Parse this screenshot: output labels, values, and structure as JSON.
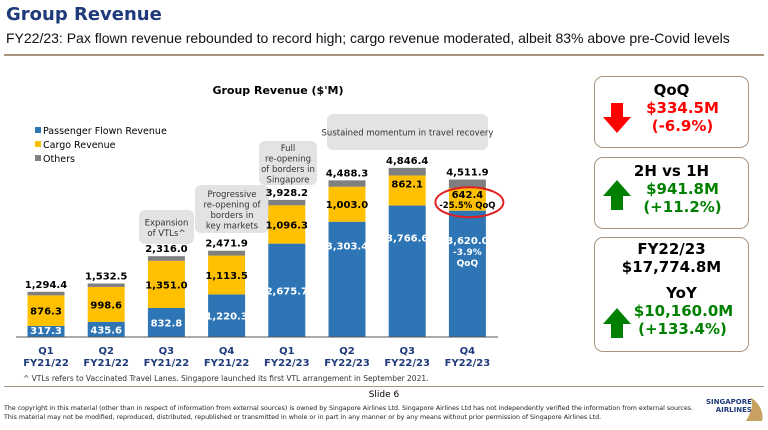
{
  "header": {
    "title": "Group Revenue",
    "subtitle": "FY22/23: Pax flown revenue rebounded to record high; cargo revenue moderated, albeit 83% above pre-Covid levels"
  },
  "chart_data": {
    "type": "bar",
    "stacked": true,
    "title": "Group Revenue ($'M)",
    "categories": [
      [
        "Q1",
        "FY21/22"
      ],
      [
        "Q2",
        "FY21/22"
      ],
      [
        "Q3",
        "FY21/22"
      ],
      [
        "Q4",
        "FY21/22"
      ],
      [
        "Q1",
        "FY22/23"
      ],
      [
        "Q2",
        "FY22/23"
      ],
      [
        "Q3",
        "FY22/23"
      ],
      [
        "Q4",
        "FY22/23"
      ]
    ],
    "series": [
      {
        "name": "Passenger Flown Revenue",
        "color": "#2e75b6",
        "values": [
          317.3,
          435.6,
          832.8,
          1220.3,
          2675.7,
          3303.4,
          3766.6,
          3620.0
        ],
        "labels": [
          "317.3",
          "435.6",
          "832.8",
          "1,220.3",
          "2,675.7",
          "3,303.4",
          "3,766.6",
          "3,620.0"
        ]
      },
      {
        "name": "Cargo Revenue",
        "color": "#ffc000",
        "values": [
          876.3,
          998.6,
          1351.0,
          1113.5,
          1096.3,
          1003.0,
          862.1,
          642.4
        ],
        "labels": [
          "876.3",
          "998.6",
          "1,351.0",
          "1,113.5",
          "1,096.3",
          "1,003.0",
          "862.1",
          "642.4"
        ]
      },
      {
        "name": "Others",
        "color": "#7f7f7f",
        "values": [
          100.8,
          98.3,
          132.2,
          138.1,
          156.2,
          181.9,
          217.7,
          249.5
        ]
      }
    ],
    "totals": [
      "1,294.4",
      "1,532.5",
      "2,316.0",
      "2,471.9",
      "3,928.2",
      "4,488.3",
      "4,846.4",
      "4,511.9"
    ],
    "totals_values": [
      1294.4,
      1532.5,
      2316.0,
      2471.9,
      3928.2,
      4488.3,
      4846.4,
      4511.9
    ],
    "q4_pax_note": [
      "-3.9%",
      "QoQ"
    ],
    "q4_cargo_note": "-25.5% QoQ",
    "callouts": [
      {
        "bar": 2,
        "lines": [
          "Expansion",
          "of VTLs^"
        ]
      },
      {
        "bar": 3,
        "lines": [
          "Progressive",
          "re-opening of",
          "borders in",
          "key markets"
        ]
      },
      {
        "bar": 4,
        "lines": [
          "Full",
          "re-opening",
          "of borders in",
          "Singapore"
        ]
      },
      {
        "bar": 5,
        "lines": [
          "Sustained momentum in travel recovery"
        ]
      }
    ],
    "footnote": "^ VTLs refers to Vaccinated Travel Lanes. Singapore launched its first VTL arrangement in September 2021.",
    "legend": "top-left"
  },
  "panels": {
    "qoq": {
      "title": "QoQ",
      "value": "$334.5M",
      "pct": "(-6.9%)",
      "color": "#ff0000",
      "icon": "arrow-down"
    },
    "h2h1": {
      "title": "2H vs 1H",
      "value": "$941.8M",
      "pct": "(+11.2%)",
      "color": "#008000",
      "icon": "arrow-up"
    },
    "fy": {
      "title": "FY22/23",
      "total": "$17,774.8M",
      "yoy": "YoY",
      "value": "$10,160.0M",
      "pct": "(+133.4%)",
      "color": "#008000",
      "icon": "arrow-up"
    }
  },
  "footer": {
    "slide": "Slide 6",
    "copyright": "The copyright in this material (other than in respect of information from external sources) is owned by Singapore Airlines Ltd. Singapore Airlines Ltd has not independently verified the information from external sources. This material may not be modified, reproduced, distributed, republished or transmitted in whole or in part in any manner or by any means without prior permission of Singapore Airlines Ltd.",
    "logo": "SINGAPORE AIRLINES"
  }
}
